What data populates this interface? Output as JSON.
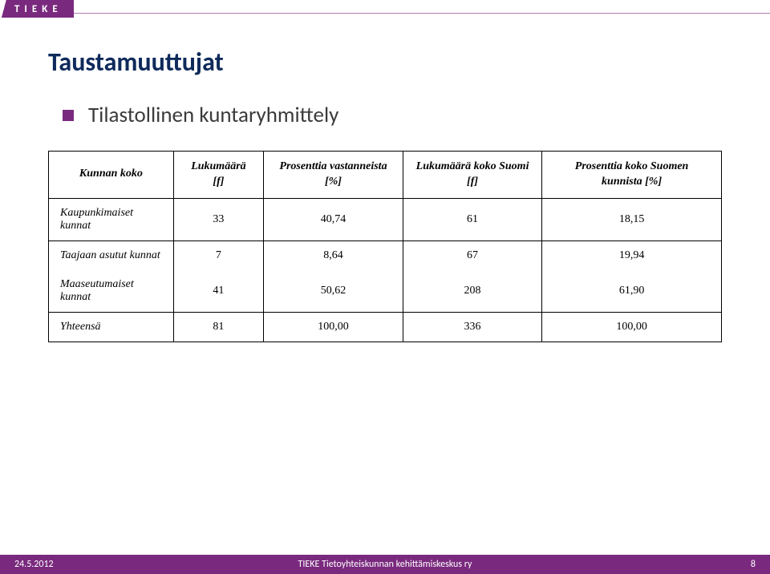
{
  "brand": "TIEKE",
  "title": "Taustamuuttujat",
  "bullet": "Tilastollinen kuntaryhmittely",
  "table": {
    "columns": [
      "Kunnan koko",
      "Lukumäärä [f]",
      "Prosenttia vastanneista [%]",
      "Lukumäärä koko Suomi [f]",
      "Prosenttia koko Suomen kunnista [%]"
    ],
    "rows": [
      {
        "label": "Kaupunkimaiset kunnat",
        "c1": "33",
        "c2": "40,74",
        "c3": "61",
        "c4": "18,15"
      },
      {
        "label": "Taajaan asutut kunnat",
        "c1": "7",
        "c2": "8,64",
        "c3": "67",
        "c4": "19,94"
      },
      {
        "label": "Maaseutumaiset kunnat",
        "c1": "41",
        "c2": "50,62",
        "c3": "208",
        "c4": "61,90"
      }
    ],
    "total": {
      "label": "Yhteensä",
      "c1": "81",
      "c2": "100,00",
      "c3": "336",
      "c4": "100,00"
    }
  },
  "footer": {
    "date": "24.5.2012",
    "org": "TIEKE Tietoyhteiskunnan kehittämiskeskus ry",
    "page": "8"
  },
  "colors": {
    "accent": "#7a2a7e",
    "title": "#0f2a5b",
    "text": "#3b3b3b",
    "border": "#000000",
    "background": "#ffffff"
  }
}
